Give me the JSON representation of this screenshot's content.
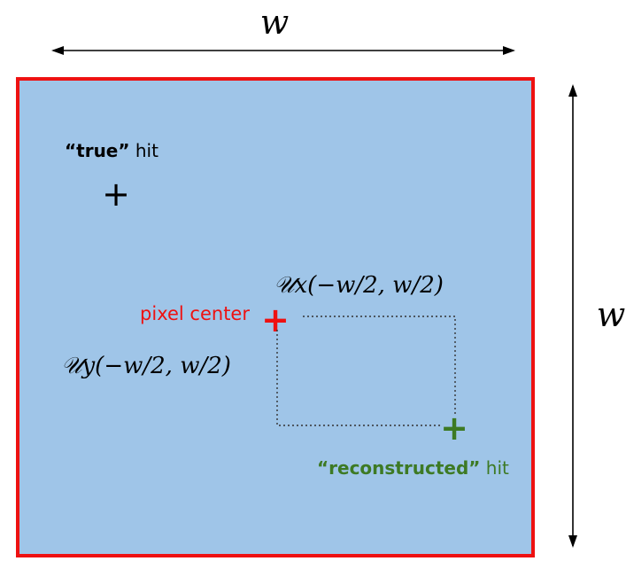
{
  "labels": {
    "top_width": "w",
    "right_width": "w",
    "true_hit_quoted": "“true”",
    "true_hit_suffix": " hit",
    "pixel_center": "pixel center",
    "ux_dist": "𝒰x(−w/2, w/2)",
    "uy_dist": "𝒰y(−w/2, w/2)",
    "reconstructed_quoted": "“reconstructed”",
    "reconstructed_suffix": " hit"
  },
  "markers": {
    "true_hit": "+",
    "pixel_center": "+",
    "reconstructed_hit": "+"
  },
  "colors": {
    "pixel_fill": "#9fc5e8",
    "pixel_border": "#ee1111",
    "pixel_center": "#ee1111",
    "reconstructed": "#3d7a24",
    "ink": "#000000"
  }
}
